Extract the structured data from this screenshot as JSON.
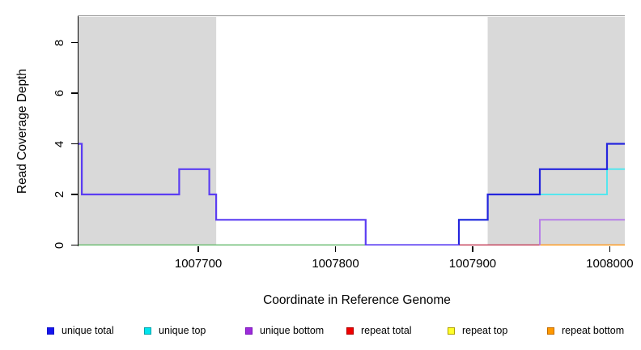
{
  "chart_data": {
    "type": "line",
    "subtype": "step-coverage",
    "title": "",
    "xlabel": "Coordinate in Reference Genome",
    "ylabel": "Read Coverage Depth",
    "xlim": [
      1007612,
      1008011
    ],
    "ylim": [
      0,
      9
    ],
    "x_ticks": [
      "1007700",
      "1007800",
      "1007900",
      "1008000"
    ],
    "x_tick_values": [
      1007700,
      1007800,
      1007900,
      1008000
    ],
    "y_ticks": [
      "0",
      "2",
      "4",
      "6",
      "8"
    ],
    "y_tick_values": [
      0,
      2,
      4,
      6,
      8
    ],
    "grid": false,
    "legend_position": "bottom",
    "shaded_regions": [
      {
        "name": "repeat-region-left",
        "x0": 1007612,
        "x1": 1007713,
        "color": "#d9d9d9"
      },
      {
        "name": "repeat-region-right",
        "x0": 1007911,
        "x1": 1008011,
        "color": "#d9d9d9"
      }
    ],
    "series": [
      {
        "name": "unique total",
        "color": "#0f14e6",
        "step_points": [
          [
            1007612,
            4
          ],
          [
            1007615,
            2
          ],
          [
            1007686,
            3
          ],
          [
            1007708,
            2
          ],
          [
            1007713,
            1
          ],
          [
            1007822,
            0
          ],
          [
            1007890,
            1
          ],
          [
            1007911,
            2
          ],
          [
            1007949,
            3
          ],
          [
            1007998,
            4
          ],
          [
            1008011,
            4
          ]
        ]
      },
      {
        "name": "unique top",
        "color": "#00e5ee",
        "step_points": [
          [
            1007612,
            0
          ],
          [
            1007890,
            1
          ],
          [
            1007911,
            2
          ],
          [
            1007998,
            3
          ],
          [
            1008011,
            3
          ]
        ]
      },
      {
        "name": "unique bottom",
        "color": "#9d2bdb",
        "step_points": [
          [
            1007612,
            4
          ],
          [
            1007615,
            2
          ],
          [
            1007686,
            3
          ],
          [
            1007708,
            2
          ],
          [
            1007713,
            1
          ],
          [
            1007822,
            0
          ],
          [
            1007949,
            1
          ],
          [
            1008011,
            1
          ]
        ]
      },
      {
        "name": "repeat total",
        "color": "#ee1111",
        "step_points": [
          [
            1007612,
            0
          ],
          [
            1008011,
            0
          ]
        ]
      },
      {
        "name": "repeat top",
        "color": "#ffff2a",
        "step_points": [
          [
            1007612,
            0
          ],
          [
            1008011,
            0
          ]
        ]
      },
      {
        "name": "repeat bottom",
        "color": "#ff9900",
        "step_points": [
          [
            1007612,
            0
          ],
          [
            1008011,
            0
          ]
        ]
      }
    ],
    "render_segments": [
      {
        "name": "zero-baseline-left",
        "color": "#65ba6b",
        "width": 1.8,
        "points": [
          [
            1007612,
            0
          ],
          [
            1007822,
            0
          ]
        ]
      },
      {
        "name": "zero-baseline-mid",
        "color": "#c23a55",
        "width": 1.8,
        "points": [
          [
            1007890,
            0
          ],
          [
            1007949,
            0
          ]
        ]
      },
      {
        "name": "zero-baseline-right",
        "color": "#ff9716",
        "width": 1.8,
        "points": [
          [
            1007949,
            0
          ],
          [
            1008011,
            0
          ]
        ]
      },
      {
        "name": "unique-top-trace",
        "color": "#55e6ee",
        "width": 2,
        "points": [
          [
            1007890,
            0
          ],
          [
            1007890,
            1
          ],
          [
            1007911,
            1
          ],
          [
            1007911,
            2
          ],
          [
            1007998,
            2
          ],
          [
            1007998,
            3
          ],
          [
            1008011,
            3
          ]
        ]
      },
      {
        "name": "unique-total-right-trace",
        "color": "#2525dd",
        "width": 2.2,
        "points": [
          [
            1007890,
            0
          ],
          [
            1007890,
            1
          ],
          [
            1007911,
            1
          ],
          [
            1007911,
            2
          ],
          [
            1007949,
            2
          ],
          [
            1007949,
            3
          ],
          [
            1007998,
            3
          ],
          [
            1007998,
            4
          ],
          [
            1008011,
            4
          ]
        ]
      },
      {
        "name": "unique-total-left-trace",
        "color": "#5b3df2",
        "width": 2.2,
        "points": [
          [
            1007612,
            4
          ],
          [
            1007615,
            4
          ],
          [
            1007615,
            2
          ],
          [
            1007686,
            2
          ],
          [
            1007686,
            3
          ],
          [
            1007708,
            3
          ],
          [
            1007708,
            2
          ],
          [
            1007713,
            2
          ],
          [
            1007713,
            1
          ],
          [
            1007822,
            1
          ],
          [
            1007822,
            0
          ],
          [
            1007890,
            0
          ]
        ]
      },
      {
        "name": "unique-bottom-right-trace",
        "color": "#b77fe8",
        "width": 2,
        "points": [
          [
            1007949,
            0
          ],
          [
            1007949,
            1
          ],
          [
            1008011,
            1
          ]
        ]
      }
    ],
    "legend": [
      {
        "label": "unique total",
        "fill": "#1414ee",
        "border": "#1515c8"
      },
      {
        "label": "unique top",
        "fill": "#00e5ee",
        "border": "#00a0a8"
      },
      {
        "label": "unique bottom",
        "fill": "#9d2bdb",
        "border": "#7a14b8"
      },
      {
        "label": "repeat total",
        "fill": "#f00000",
        "border": "#b00000"
      },
      {
        "label": "repeat top",
        "fill": "#ffff2a",
        "border": "#b0a000"
      },
      {
        "label": "repeat bottom",
        "fill": "#ff9900",
        "border": "#c26b00"
      }
    ]
  }
}
